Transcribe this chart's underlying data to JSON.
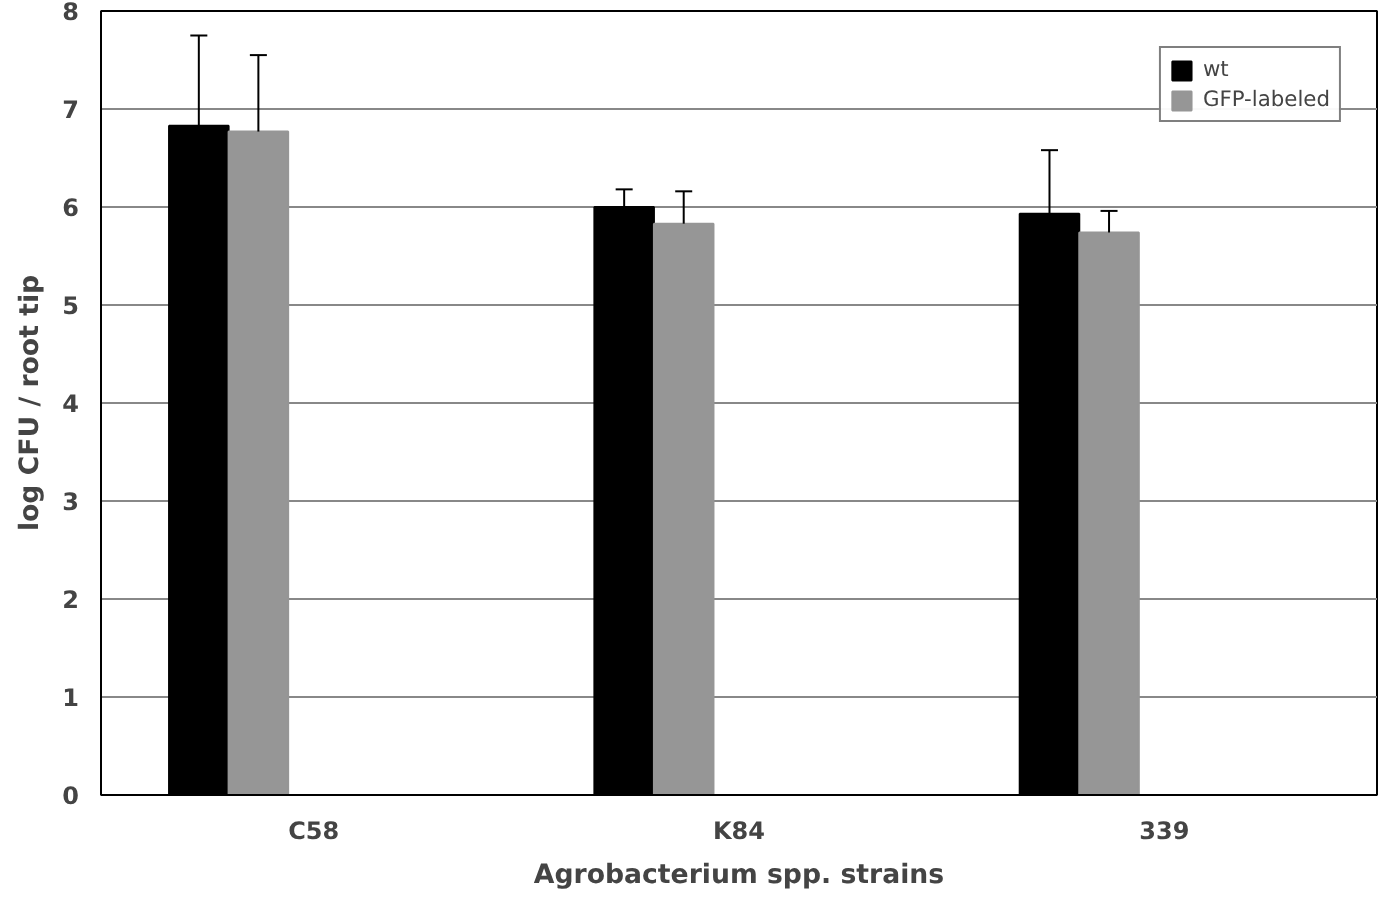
{
  "chart_data": {
    "type": "bar",
    "xlabel": "Agrobacterium spp. strains",
    "ylabel": "log CFU / root tip",
    "categories": [
      "C58",
      "K84",
      "339"
    ],
    "series": [
      {
        "name": "wt",
        "color": "#000000",
        "values": [
          6.83,
          6.0,
          5.93
        ],
        "errors": [
          [
            6.83,
            7.75
          ],
          [
            6.0,
            6.18
          ],
          [
            5.93,
            6.58
          ]
        ]
      },
      {
        "name": "GFP-labeled",
        "color": "#969696",
        "values": [
          6.77,
          5.83,
          5.74
        ],
        "errors": [
          [
            6.77,
            7.55
          ],
          [
            5.83,
            6.16
          ],
          [
            5.74,
            5.96
          ]
        ]
      }
    ],
    "ylim": [
      0,
      8
    ],
    "yticks": [
      0,
      1,
      2,
      3,
      4,
      5,
      6,
      7,
      8
    ],
    "grid": "y",
    "legend": "top right"
  }
}
